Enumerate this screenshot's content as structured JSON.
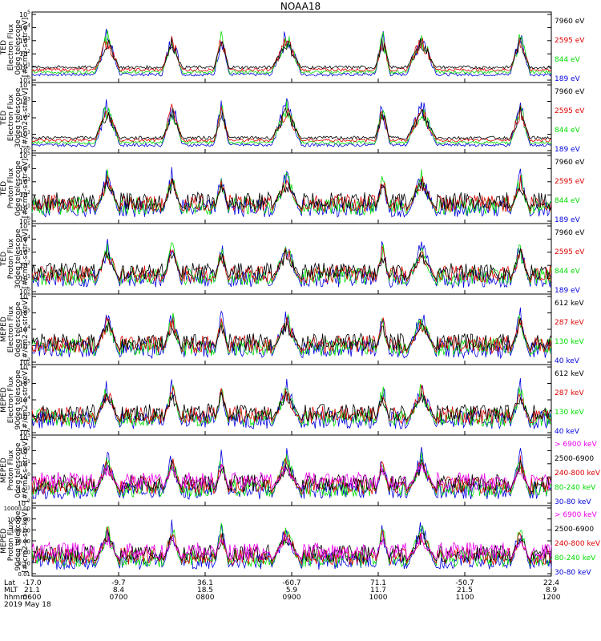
{
  "title": "NOAA18",
  "colors": {
    "black": "#000000",
    "red": "#dd0000",
    "green": "#00dd00",
    "blue": "#0000dd",
    "magenta": "#ee00ee"
  },
  "chart_data": [
    {
      "type": "line",
      "ylabel": [
        "TED",
        "Electron Flux",
        "0deg telescope",
        "[#/cm2-s-str-eV]"
      ],
      "yscale": "log",
      "yticks": [
        "10^0",
        "10^1",
        "10^2",
        "10^3",
        "10^4",
        "10^5"
      ],
      "ylim": [
        1,
        100000
      ],
      "legend": [
        {
          "label": "7960 eV",
          "color": "black"
        },
        {
          "label": "2595 eV",
          "color": "red"
        },
        {
          "label": "844 eV",
          "color": "green"
        },
        {
          "label": "189 eV",
          "color": "blue"
        }
      ]
    },
    {
      "type": "line",
      "ylabel": [
        "TED",
        "Electron Flux",
        "30deg telescope",
        "[#/cm2-s-str-eV]"
      ],
      "yscale": "log",
      "yticks": [
        "10^0",
        "10^1",
        "10^2",
        "10^3",
        "10^4"
      ],
      "ylim": [
        1,
        30000
      ],
      "legend": [
        {
          "label": "7960 eV",
          "color": "black"
        },
        {
          "label": "2595 eV",
          "color": "red"
        },
        {
          "label": "844 eV",
          "color": "green"
        },
        {
          "label": "189 eV",
          "color": "blue"
        }
      ]
    },
    {
      "type": "line",
      "ylabel": [
        "TED",
        "Proton Flux",
        "0deg telescope",
        "[#/cm2-s-str-eV]"
      ],
      "yscale": "log",
      "yticks": [
        "10^0",
        "10^1",
        "10^2",
        "10^3",
        "10^4",
        "10^5"
      ],
      "ylim": [
        1,
        100000
      ],
      "legend": [
        {
          "label": "7960 eV",
          "color": "black"
        },
        {
          "label": "2595 eV",
          "color": "red"
        },
        {
          "label": "844 eV",
          "color": "green"
        },
        {
          "label": "189 eV",
          "color": "blue"
        }
      ]
    },
    {
      "type": "line",
      "ylabel": [
        "TED",
        "Proton Flux",
        "30deg telescope",
        "[#/cm2-s-str-eV]"
      ],
      "yscale": "log",
      "yticks": [
        "10^0",
        "10^1",
        "10^2",
        "10^3",
        "10^4",
        "10^5"
      ],
      "ylim": [
        1,
        100000
      ],
      "legend": [
        {
          "label": "7960 eV",
          "color": "black"
        },
        {
          "label": "2595 eV",
          "color": "red"
        },
        {
          "label": "844 eV",
          "color": "green"
        },
        {
          "label": "189 eV",
          "color": "blue"
        }
      ]
    },
    {
      "type": "line",
      "ylabel": [
        "MEPED",
        "Electron Flux",
        "0deg telescope",
        "[#/cm2-s-str-keV]"
      ],
      "yscale": "log",
      "yticks": [
        "10^2",
        "10^3",
        "10^4",
        "10^5",
        "10^6"
      ],
      "ylim": [
        100,
        1000000
      ],
      "legend": [
        {
          "label": "612 keV",
          "color": "black"
        },
        {
          "label": "287 keV",
          "color": "red"
        },
        {
          "label": "130 keV",
          "color": "green"
        },
        {
          "label": "40 keV",
          "color": "blue"
        }
      ]
    },
    {
      "type": "line",
      "ylabel": [
        "MEPED",
        "Electron Flux",
        "90deg telescope",
        "[#/cm2-s-str-keV]"
      ],
      "yscale": "log",
      "yticks": [
        "10^2",
        "10^3",
        "10^4",
        "10^5",
        "10^6"
      ],
      "ylim": [
        100,
        1000000
      ],
      "legend": [
        {
          "label": "612 keV",
          "color": "black"
        },
        {
          "label": "287 keV",
          "color": "red"
        },
        {
          "label": "130 keV",
          "color": "green"
        },
        {
          "label": "40 keV",
          "color": "blue"
        }
      ]
    },
    {
      "type": "line",
      "ylabel": [
        "MEPED",
        "Proton Flux",
        "0deg telescope",
        "[#/cm2-s-str-keV]"
      ],
      "yscale": "log",
      "yticks": [
        "10^-2",
        "10^-1",
        "10^0",
        "10^1",
        "10^2",
        "10^3"
      ],
      "ylim": [
        0.01,
        1000
      ],
      "legend": [
        {
          "label": "> 6900 keV",
          "color": "magenta"
        },
        {
          "label": "2500-6900",
          "color": "black"
        },
        {
          "label": "240-800 keV",
          "color": "red"
        },
        {
          "label": "80-240 keV",
          "color": "green"
        },
        {
          "label": "30-80 keV",
          "color": "blue"
        }
      ]
    },
    {
      "type": "line",
      "ylabel": [
        "MEPED",
        "Proton Flux",
        "90deg telescope",
        "[#/cm2-s-str-keV]"
      ],
      "yscale": "log",
      "yticks": [
        "0.01",
        "0.10",
        "1.00",
        "10.00",
        "100.00",
        "1000.00",
        "10000.00"
      ],
      "ylim": [
        0.01,
        10000
      ],
      "legend": [
        {
          "label": "> 6900 keV",
          "color": "magenta"
        },
        {
          "label": "2500-6900",
          "color": "black"
        },
        {
          "label": "240-800 keV",
          "color": "red"
        },
        {
          "label": "80-240 keV",
          "color": "green"
        },
        {
          "label": "30-80 keV",
          "color": "blue"
        }
      ]
    }
  ],
  "xaxis": {
    "row_labels": [
      "Lat",
      "MLT",
      "hhmm",
      "2019 May 18"
    ],
    "ticks": [
      {
        "lat": "-17.0",
        "mlt": "21.1",
        "time": "0600"
      },
      {
        "lat": "-9.7",
        "mlt": "8.4",
        "time": "0700"
      },
      {
        "lat": "36.1",
        "mlt": "18.5",
        "time": "0800"
      },
      {
        "lat": "-60.7",
        "mlt": "5.9",
        "time": "0900"
      },
      {
        "lat": "71.1",
        "mlt": "11.7",
        "time": "1000"
      },
      {
        "lat": "-50.7",
        "mlt": "21.5",
        "time": "1100"
      },
      {
        "lat": "22.4",
        "mlt": "8.9",
        "time": "1200"
      }
    ]
  }
}
